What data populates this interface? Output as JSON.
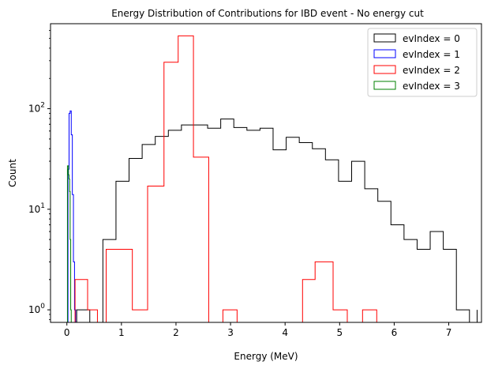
{
  "chart_data": {
    "type": "histogram",
    "title": "Energy Distribution of Contributions for IBD event - No energy cut",
    "xlabel": "Energy (MeV)",
    "ylabel": "Count",
    "xlim": [
      -0.3,
      7.6
    ],
    "ylim": [
      0.75,
      700
    ],
    "yscale": "log",
    "xticks": [
      "0",
      "1",
      "2",
      "3",
      "4",
      "5",
      "6",
      "7"
    ],
    "yticks": [
      {
        "base": "10",
        "exp": "0",
        "value": 1
      },
      {
        "base": "10",
        "exp": "1",
        "value": 10
      },
      {
        "base": "10",
        "exp": "2",
        "value": 100
      }
    ],
    "legend_position": "top-right",
    "series": [
      {
        "name": "evIndex = 0",
        "color": "#000000",
        "edges": [
          0.0,
          0.18,
          0.42,
          0.66,
          0.9,
          1.14,
          1.38,
          1.62,
          1.86,
          2.1,
          2.34,
          2.58,
          2.82,
          3.06,
          3.3,
          3.54,
          3.78,
          4.02,
          4.26,
          4.5,
          4.74,
          4.98,
          5.22,
          5.46,
          5.7,
          5.94,
          6.18,
          6.42,
          6.66,
          6.9,
          7.14,
          7.38,
          7.52
        ],
        "values": [
          0,
          1,
          0,
          5,
          19,
          32,
          44,
          53,
          61,
          69,
          69,
          64,
          79,
          65,
          61,
          64,
          39,
          52,
          46,
          40,
          31,
          19,
          30,
          16,
          12,
          7,
          5,
          4,
          6,
          4,
          1,
          0,
          1
        ]
      },
      {
        "name": "evIndex = 1",
        "color": "#0000ff",
        "edges": [
          0.0,
          0.02,
          0.04,
          0.06,
          0.08,
          0.1,
          0.12,
          0.14,
          0.16
        ],
        "values": [
          0,
          25,
          90,
          95,
          55,
          14,
          3,
          1,
          0
        ]
      },
      {
        "name": "evIndex = 2",
        "color": "#ff0000",
        "edges": [
          0.15,
          0.38,
          0.56,
          0.72,
          1.2,
          1.48,
          1.78,
          2.04,
          2.32,
          2.6,
          2.86,
          3.12,
          3.38,
          3.64,
          3.9,
          4.16,
          4.32,
          4.55,
          4.88,
          5.14,
          5.42,
          5.68,
          5.94
        ],
        "values": [
          2,
          1,
          0,
          4,
          1,
          17,
          290,
          530,
          33,
          0,
          1,
          0,
          0,
          0,
          0,
          0,
          2,
          3,
          1,
          0,
          1,
          0,
          0
        ]
      },
      {
        "name": "evIndex = 3",
        "color": "#008000",
        "edges": [
          0.0,
          0.01,
          0.02,
          0.03,
          0.04,
          0.05,
          0.06,
          0.07,
          0.08
        ],
        "values": [
          0,
          27,
          27,
          22,
          20,
          15,
          5,
          1,
          0
        ]
      }
    ]
  }
}
